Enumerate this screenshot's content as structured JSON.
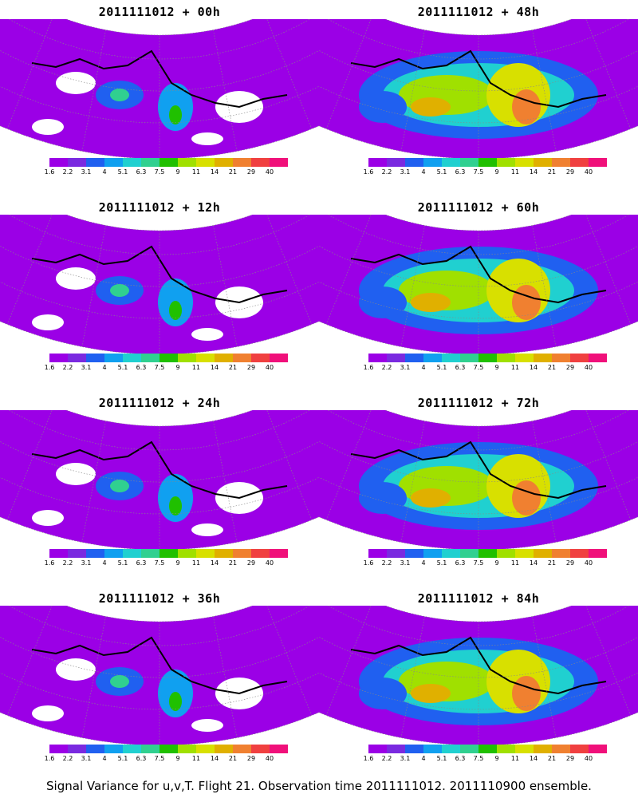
{
  "panels": [
    {
      "title": "2011111012 + 00h"
    },
    {
      "title": "2011111012 + 48h"
    },
    {
      "title": "2011111012 + 12h"
    },
    {
      "title": "2011111012 + 60h"
    },
    {
      "title": "2011111012 + 24h"
    },
    {
      "title": "2011111012 + 72h"
    },
    {
      "title": "2011111012 + 36h"
    },
    {
      "title": "2011111012 + 84h"
    }
  ],
  "colorbar": {
    "labels": [
      "1.6",
      "2.2",
      "3.1",
      "4",
      "5.1",
      "6.3",
      "7.5",
      "9",
      "11",
      "14",
      "21",
      "29",
      "40"
    ],
    "colors": [
      "#9b00e6",
      "#7a2ae0",
      "#2060f0",
      "#10a0f0",
      "#20d0d0",
      "#30d090",
      "#20c000",
      "#a0e000",
      "#d8e000",
      "#e0b000",
      "#f08030",
      "#f04040",
      "#f0107a"
    ]
  },
  "footer": "Signal Variance for u,v,T. Flight 21. Observation time 2011111012. 2011110900 ensemble."
}
